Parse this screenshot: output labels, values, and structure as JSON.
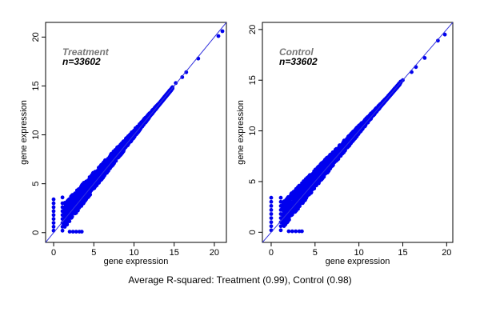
{
  "caption": "Average R-squared: Treatment (0.99), Control (0.98)",
  "colors": {
    "points": "#0000ee",
    "line": "#3333dd",
    "axis": "#000000",
    "label_title": "#777777"
  },
  "chart_data": [
    {
      "type": "scatter",
      "title": "Treatment",
      "subtitle": "n=33602",
      "xlabel": "gene expression",
      "ylabel": "gene expression",
      "xlim": [
        -1,
        21.5
      ],
      "ylim": [
        -1,
        21.5
      ],
      "xticks": [
        0,
        5,
        10,
        15,
        20
      ],
      "yticks": [
        0,
        5,
        10,
        15,
        20
      ],
      "reference_line": "y = x",
      "grid": false,
      "points": [
        [
          0,
          0.2
        ],
        [
          0,
          0.6
        ],
        [
          0,
          1.0
        ],
        [
          0,
          1.4
        ],
        [
          0,
          1.8
        ],
        [
          0,
          2.2
        ],
        [
          0,
          2.6
        ],
        [
          0,
          3.0
        ],
        [
          0,
          3.4
        ],
        [
          1.1,
          0.2
        ],
        [
          1.1,
          0.6
        ],
        [
          1.1,
          1.0
        ],
        [
          1.1,
          1.4
        ],
        [
          1.1,
          1.8
        ],
        [
          1.1,
          2.2
        ],
        [
          1.1,
          2.6
        ],
        [
          1.1,
          3.0
        ],
        [
          1.1,
          3.6
        ],
        [
          2.0,
          0.1
        ],
        [
          2.4,
          0.1
        ],
        [
          2.8,
          0.1
        ],
        [
          3.2,
          0.1
        ],
        [
          3.5,
          0.1
        ],
        [
          13.0,
          13.0
        ],
        [
          14.0,
          14.1
        ],
        [
          15.2,
          15.3
        ],
        [
          16.0,
          15.9
        ],
        [
          16.5,
          16.4
        ],
        [
          18.0,
          17.8
        ],
        [
          20.5,
          20.1
        ],
        [
          21.0,
          20.6
        ]
      ]
    },
    {
      "type": "scatter",
      "title": "Control",
      "subtitle": "n=33602",
      "xlabel": "gene expression",
      "ylabel": "gene expression",
      "xlim": [
        -1,
        20.7
      ],
      "ylim": [
        -1,
        20.7
      ],
      "xticks": [
        0,
        5,
        10,
        15,
        20
      ],
      "yticks": [
        0,
        5,
        10,
        15,
        20
      ],
      "reference_line": "y = x",
      "grid": false,
      "points": [
        [
          0,
          0.2
        ],
        [
          0,
          0.6
        ],
        [
          0,
          1.0
        ],
        [
          0,
          1.4
        ],
        [
          0,
          1.8
        ],
        [
          0,
          2.2
        ],
        [
          0,
          2.6
        ],
        [
          0,
          3.0
        ],
        [
          0,
          3.4
        ],
        [
          1.1,
          0.2
        ],
        [
          1.1,
          0.6
        ],
        [
          1.1,
          1.0
        ],
        [
          1.1,
          1.4
        ],
        [
          1.1,
          1.8
        ],
        [
          1.1,
          2.2
        ],
        [
          1.1,
          2.6
        ],
        [
          1.1,
          3.0
        ],
        [
          1.1,
          3.4
        ],
        [
          2.0,
          0.1
        ],
        [
          2.4,
          0.1
        ],
        [
          2.8,
          0.1
        ],
        [
          3.2,
          0.1
        ],
        [
          3.5,
          0.1
        ],
        [
          12.5,
          12.6
        ],
        [
          13.5,
          13.6
        ],
        [
          14.5,
          14.5
        ],
        [
          15.0,
          15.0
        ],
        [
          16.0,
          15.8
        ],
        [
          16.5,
          16.3
        ],
        [
          17.5,
          17.2
        ],
        [
          19.0,
          18.9
        ],
        [
          19.8,
          19.5
        ]
      ]
    }
  ]
}
